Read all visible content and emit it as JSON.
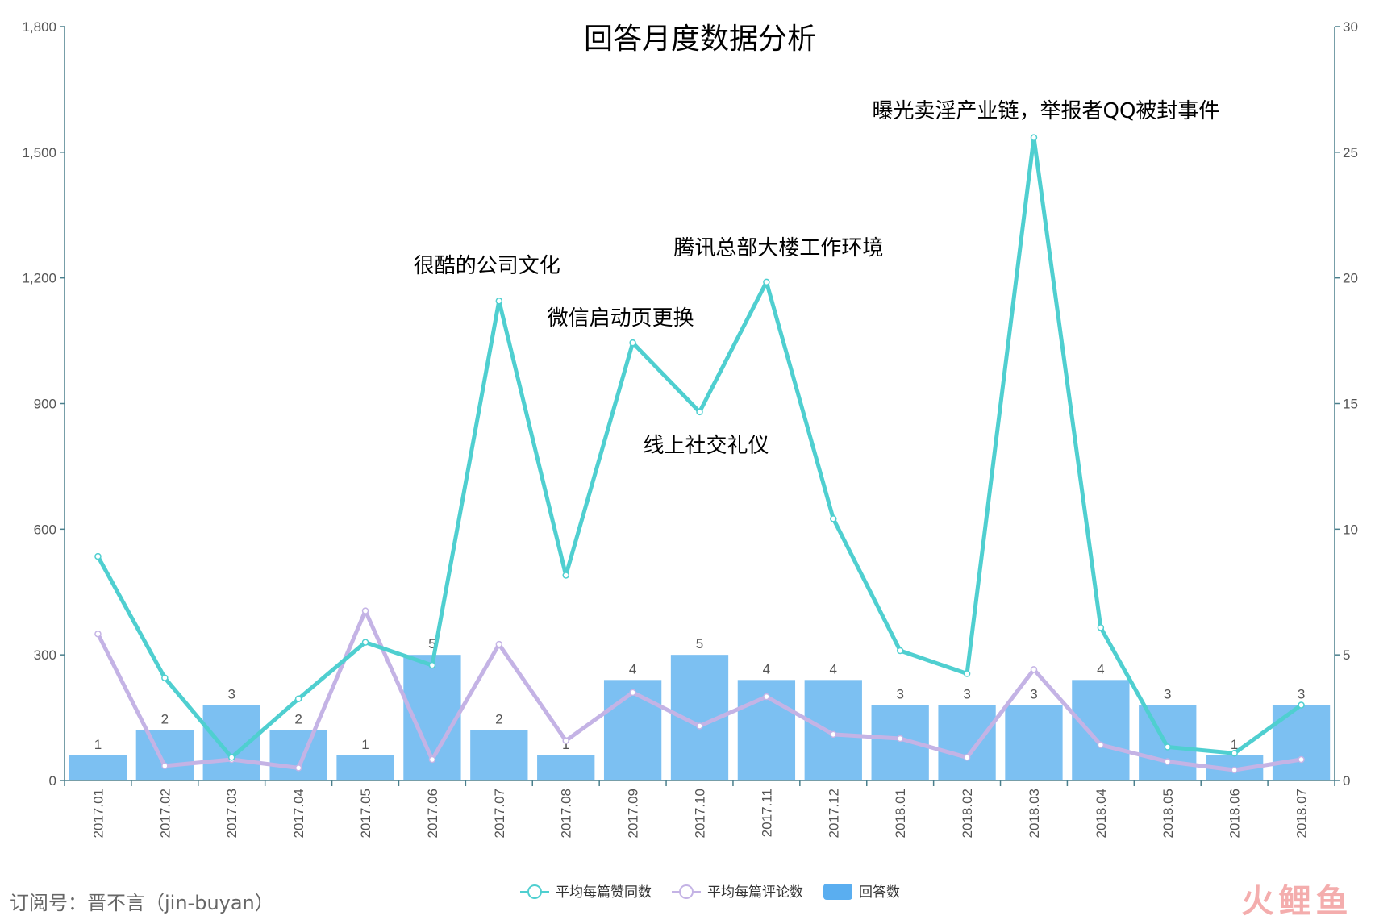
{
  "chart_data": {
    "type": "bar",
    "title": "回答月度数据分析",
    "categories": [
      "2017.01",
      "2017.02",
      "2017.03",
      "2017.04",
      "2017.05",
      "2017.06",
      "2017.07",
      "2017.08",
      "2017.09",
      "2017.10",
      "2017.11",
      "2017.12",
      "2018.01",
      "2018.02",
      "2018.03",
      "2018.04",
      "2018.05",
      "2018.06",
      "2018.07"
    ],
    "left_axis": {
      "min": 0,
      "max": 1800,
      "ticks": [
        0,
        300,
        600,
        900,
        1200,
        1500,
        1800
      ],
      "tick_labels": [
        "0",
        "300",
        "600",
        "900",
        "1,200",
        "1,500",
        "1,800"
      ]
    },
    "right_axis": {
      "min": 0,
      "max": 30,
      "ticks": [
        0,
        5,
        10,
        15,
        20,
        25,
        30
      ],
      "tick_labels": [
        "0",
        "5",
        "10",
        "15",
        "20",
        "25",
        "30"
      ]
    },
    "series": [
      {
        "name": "平均每篇赞同数",
        "type": "line",
        "axis": "left",
        "color": "#4fcfd0",
        "values": [
          535,
          245,
          55,
          195,
          330,
          275,
          1145,
          490,
          1045,
          880,
          1190,
          625,
          310,
          255,
          1535,
          365,
          80,
          65,
          180
        ]
      },
      {
        "name": "平均每篇评论数",
        "type": "line",
        "axis": "left",
        "color": "#c4b3e5",
        "values": [
          350,
          35,
          50,
          30,
          405,
          50,
          325,
          95,
          210,
          130,
          200,
          110,
          100,
          55,
          265,
          85,
          45,
          25,
          50
        ]
      },
      {
        "name": "回答数",
        "type": "bar",
        "axis": "right",
        "color": "#7cc0f2",
        "label_color": "#555555",
        "values": [
          1,
          2,
          3,
          2,
          1,
          5,
          2,
          1,
          4,
          5,
          4,
          4,
          3,
          3,
          3,
          4,
          3,
          1,
          3
        ]
      }
    ],
    "annotations": [
      {
        "text": "很酷的公司文化",
        "category": "2017.07"
      },
      {
        "text": "微信启动页更换",
        "category": "2017.09"
      },
      {
        "text": "线上社交礼仪",
        "category": "2017.10"
      },
      {
        "text": "腾讯总部大楼工作环境",
        "category": "2017.11"
      },
      {
        "text": "曝光卖淫产业链，举报者QQ被封事件",
        "category": "2018.03"
      }
    ],
    "legend": {
      "position": "bottom-center"
    },
    "grid": false
  },
  "footer": {
    "text": "订阅号：晋不言（jin-buyan）"
  },
  "watermark": {
    "text": "火鲤鱼"
  }
}
